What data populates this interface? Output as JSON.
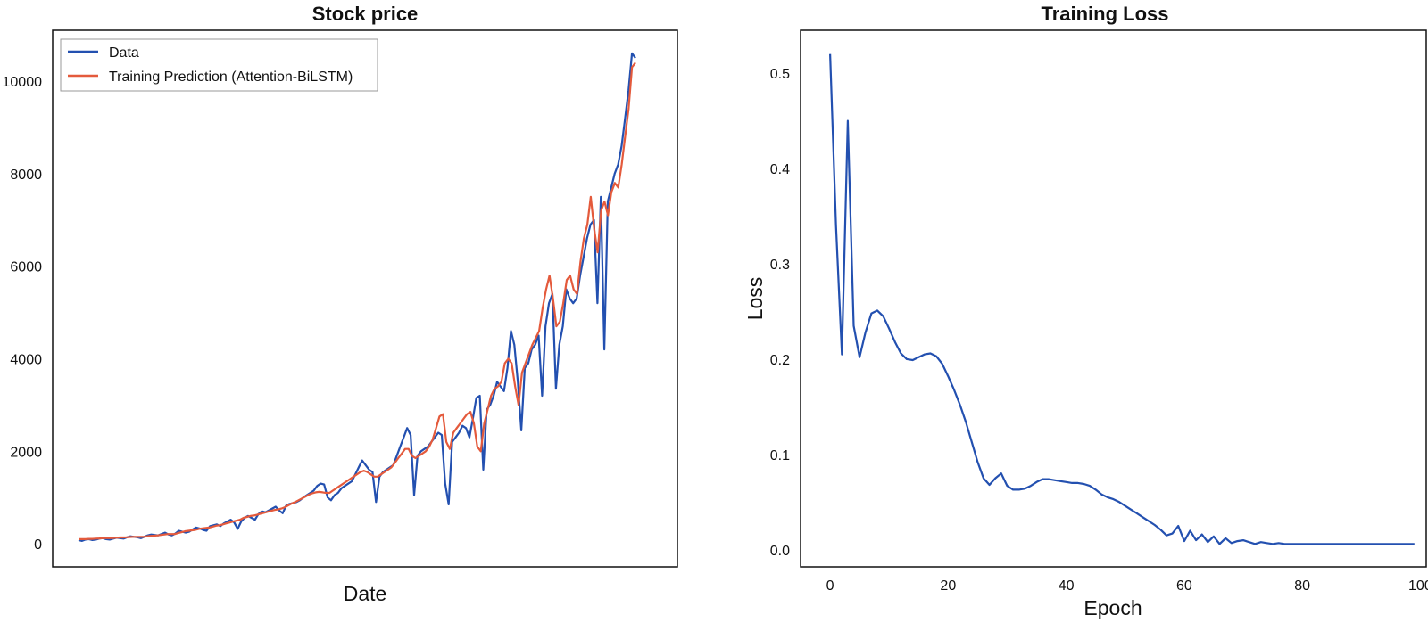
{
  "colors": {
    "data": "#2350b0",
    "prediction": "#e45a3c",
    "loss": "#2350b0",
    "frame": "#111111"
  },
  "chart_data": [
    {
      "type": "line",
      "title": "Stock price",
      "xlabel": "Date",
      "ylabel": "",
      "xticks": false,
      "ylim": [
        -500,
        11100
      ],
      "yticks": [
        0,
        2000,
        4000,
        6000,
        8000,
        10000
      ],
      "yticklabels": [
        "0",
        "2000",
        "4000",
        "6000",
        "8000",
        "10000"
      ],
      "grid": false,
      "legend": "top-left",
      "series": [
        {
          "name": "Data",
          "values": [
            80,
            60,
            90,
            100,
            80,
            90,
            110,
            120,
            100,
            90,
            110,
            130,
            120,
            110,
            140,
            160,
            150,
            140,
            120,
            150,
            180,
            200,
            190,
            180,
            210,
            240,
            200,
            180,
            220,
            280,
            260,
            240,
            260,
            310,
            350,
            330,
            300,
            280,
            380,
            400,
            420,
            380,
            440,
            480,
            520,
            460,
            320,
            480,
            560,
            600,
            560,
            520,
            640,
            700,
            680,
            720,
            760,
            800,
            720,
            660,
            820,
            860,
            880,
            900,
            940,
            1000,
            1050,
            1100,
            1150,
            1250,
            1300,
            1280,
            1000,
            940,
            1050,
            1100,
            1200,
            1250,
            1300,
            1350,
            1500,
            1650,
            1800,
            1700,
            1600,
            1550,
            900,
            1450,
            1550,
            1600,
            1650,
            1700,
            1900,
            2100,
            2300,
            2500,
            2350,
            1050,
            1900,
            2000,
            2050,
            2100,
            2200,
            2300,
            2400,
            2350,
            1300,
            850,
            2200,
            2300,
            2400,
            2550,
            2500,
            2300,
            2700,
            3150,
            3200,
            1600,
            2900,
            3000,
            3200,
            3500,
            3400,
            3300,
            3800,
            4600,
            4300,
            3500,
            2450,
            3800,
            3900,
            4200,
            4300,
            4500,
            3200,
            4700,
            5200,
            5400,
            3350,
            4300,
            4700,
            5500,
            5300,
            5200,
            5300,
            5800,
            6200,
            6600,
            6900,
            7000,
            5200,
            7500,
            4200,
            7400,
            7700,
            8000,
            8200,
            8600,
            9200,
            9800,
            10600,
            10500
          ]
        },
        {
          "name": "Training Prediction (Attention-BiLSTM)",
          "values": [
            100,
            100,
            100,
            105,
            105,
            110,
            115,
            120,
            120,
            120,
            125,
            130,
            135,
            135,
            140,
            145,
            150,
            150,
            150,
            150,
            160,
            170,
            175,
            180,
            190,
            200,
            210,
            210,
            210,
            230,
            250,
            270,
            280,
            290,
            300,
            320,
            330,
            340,
            350,
            370,
            390,
            400,
            420,
            440,
            460,
            480,
            500,
            520,
            560,
            580,
            600,
            610,
            630,
            650,
            670,
            690,
            710,
            730,
            740,
            760,
            790,
            830,
            870,
            900,
            940,
            980,
            1020,
            1060,
            1090,
            1110,
            1120,
            1110,
            1100,
            1100,
            1150,
            1200,
            1250,
            1300,
            1350,
            1400,
            1450,
            1500,
            1550,
            1580,
            1550,
            1500,
            1450,
            1450,
            1500,
            1550,
            1600,
            1650,
            1750,
            1850,
            1950,
            2050,
            2050,
            1900,
            1850,
            1900,
            1950,
            2000,
            2100,
            2250,
            2500,
            2750,
            2800,
            2200,
            2050,
            2400,
            2500,
            2600,
            2700,
            2800,
            2850,
            2600,
            2100,
            2000,
            2600,
            2900,
            3200,
            3350,
            3400,
            3500,
            3900,
            4000,
            3900,
            3400,
            3000,
            3700,
            3900,
            4100,
            4300,
            4450,
            4600,
            5100,
            5500,
            5800,
            5300,
            4700,
            4800,
            5200,
            5700,
            5800,
            5500,
            5400,
            6100,
            6600,
            6900,
            7500,
            6800,
            6300,
            7200,
            7400,
            7100,
            7600,
            7800,
            7700,
            8200,
            8800,
            9400,
            10300,
            10400
          ]
        }
      ]
    },
    {
      "type": "line",
      "title": "Training Loss",
      "xlabel": "Epoch",
      "ylabel": "Loss",
      "xlim": [
        -5,
        101
      ],
      "ylim": [
        -0.018,
        0.545
      ],
      "xticks": [
        0,
        20,
        40,
        60,
        80,
        100
      ],
      "xticklabels": [
        "0",
        "20",
        "40",
        "60",
        "80",
        "100"
      ],
      "yticks": [
        0.0,
        0.1,
        0.2,
        0.3,
        0.4,
        0.5
      ],
      "yticklabels": [
        "0.0",
        "0.1",
        "0.2",
        "0.3",
        "0.4",
        "0.5"
      ],
      "grid": false,
      "series": [
        {
          "name": "",
          "x": [
            0,
            1,
            2,
            3,
            4,
            5,
            6,
            7,
            8,
            9,
            10,
            11,
            12,
            13,
            14,
            15,
            16,
            17,
            18,
            19,
            20,
            21,
            22,
            23,
            24,
            25,
            26,
            27,
            28,
            29,
            30,
            31,
            32,
            33,
            34,
            35,
            36,
            37,
            38,
            39,
            40,
            41,
            42,
            43,
            44,
            45,
            46,
            47,
            48,
            49,
            50,
            51,
            52,
            53,
            54,
            55,
            56,
            57,
            58,
            59,
            60,
            61,
            62,
            63,
            64,
            65,
            66,
            67,
            68,
            69,
            70,
            71,
            72,
            73,
            74,
            75,
            76,
            77,
            78,
            79,
            80,
            81,
            82,
            83,
            84,
            85,
            86,
            87,
            88,
            89,
            90,
            91,
            92,
            93,
            94,
            95,
            96,
            97,
            98,
            99
          ],
          "values": [
            0.52,
            0.34,
            0.205,
            0.45,
            0.235,
            0.202,
            0.228,
            0.248,
            0.251,
            0.245,
            0.232,
            0.218,
            0.206,
            0.2,
            0.199,
            0.202,
            0.205,
            0.206,
            0.203,
            0.195,
            0.182,
            0.168,
            0.152,
            0.134,
            0.113,
            0.092,
            0.075,
            0.068,
            0.075,
            0.08,
            0.067,
            0.063,
            0.063,
            0.064,
            0.067,
            0.071,
            0.074,
            0.074,
            0.073,
            0.072,
            0.071,
            0.07,
            0.07,
            0.069,
            0.067,
            0.063,
            0.058,
            0.055,
            0.053,
            0.05,
            0.046,
            0.042,
            0.038,
            0.034,
            0.03,
            0.026,
            0.021,
            0.015,
            0.017,
            0.025,
            0.009,
            0.02,
            0.01,
            0.016,
            0.008,
            0.014,
            0.006,
            0.012,
            0.007,
            0.009,
            0.01,
            0.008,
            0.006,
            0.008,
            0.007,
            0.006,
            0.007,
            0.006,
            0.006,
            0.006,
            0.006,
            0.006,
            0.006,
            0.006,
            0.006,
            0.006,
            0.006,
            0.006,
            0.006,
            0.006,
            0.006,
            0.006,
            0.006,
            0.006,
            0.006,
            0.006,
            0.006,
            0.006,
            0.006,
            0.006
          ]
        }
      ]
    }
  ]
}
